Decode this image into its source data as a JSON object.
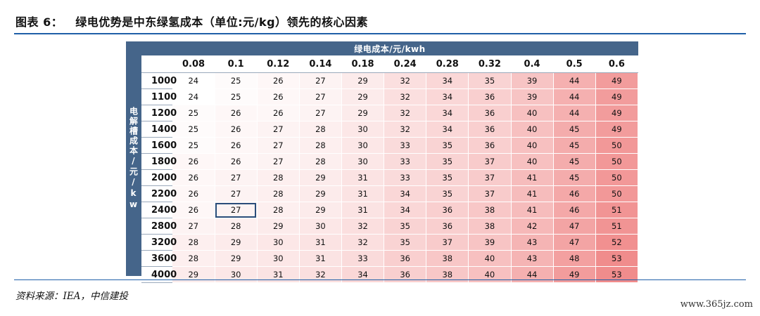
{
  "figure": {
    "number_label": "图表 6：",
    "title": "绿电优势是中东绿氢成本（单位:元/kg）领先的核心因素"
  },
  "table": {
    "column_header": "绿电成本/元/kwh",
    "row_header": "电解槽成本/元/kw",
    "columns": [
      "0.08",
      "0.1",
      "0.12",
      "0.14",
      "0.18",
      "0.24",
      "0.28",
      "0.32",
      "0.4",
      "0.5",
      "0.6"
    ],
    "rows": [
      {
        "label": "1000",
        "values": [
          24,
          25,
          26,
          27,
          29,
          32,
          34,
          35,
          39,
          44,
          49
        ]
      },
      {
        "label": "1100",
        "values": [
          24,
          25,
          26,
          27,
          29,
          32,
          34,
          36,
          39,
          44,
          49
        ]
      },
      {
        "label": "1200",
        "values": [
          25,
          26,
          26,
          27,
          29,
          32,
          34,
          36,
          40,
          44,
          49
        ]
      },
      {
        "label": "1400",
        "values": [
          25,
          26,
          27,
          28,
          30,
          32,
          34,
          36,
          40,
          45,
          49
        ]
      },
      {
        "label": "1600",
        "values": [
          25,
          26,
          27,
          28,
          30,
          33,
          35,
          36,
          40,
          45,
          50
        ]
      },
      {
        "label": "1800",
        "values": [
          26,
          26,
          27,
          28,
          30,
          33,
          35,
          37,
          40,
          45,
          50
        ]
      },
      {
        "label": "2000",
        "values": [
          26,
          27,
          28,
          29,
          31,
          33,
          35,
          37,
          41,
          45,
          50
        ]
      },
      {
        "label": "2200",
        "values": [
          26,
          27,
          28,
          29,
          31,
          34,
          35,
          37,
          41,
          46,
          50
        ]
      },
      {
        "label": "2400",
        "values": [
          26,
          27,
          28,
          29,
          31,
          34,
          36,
          38,
          41,
          46,
          51
        ]
      },
      {
        "label": "2800",
        "values": [
          27,
          28,
          29,
          30,
          32,
          35,
          36,
          38,
          42,
          47,
          51
        ]
      },
      {
        "label": "3200",
        "values": [
          28,
          29,
          30,
          31,
          32,
          35,
          37,
          39,
          43,
          47,
          52
        ]
      },
      {
        "label": "3600",
        "values": [
          28,
          29,
          30,
          31,
          33,
          36,
          38,
          40,
          43,
          48,
          53
        ]
      },
      {
        "label": "4000",
        "values": [
          29,
          30,
          31,
          32,
          34,
          36,
          38,
          40,
          44,
          49,
          53
        ]
      }
    ],
    "highlighted_cell": {
      "row": 8,
      "col": 1
    },
    "colors": {
      "header_bg": "#45658a",
      "low": "#ffffff",
      "high": "#f08c8c",
      "highlight_border": "#2a4d7a"
    }
  },
  "source": "资料来源：IEA，中信建投",
  "watermark": "www.365jz.com"
}
